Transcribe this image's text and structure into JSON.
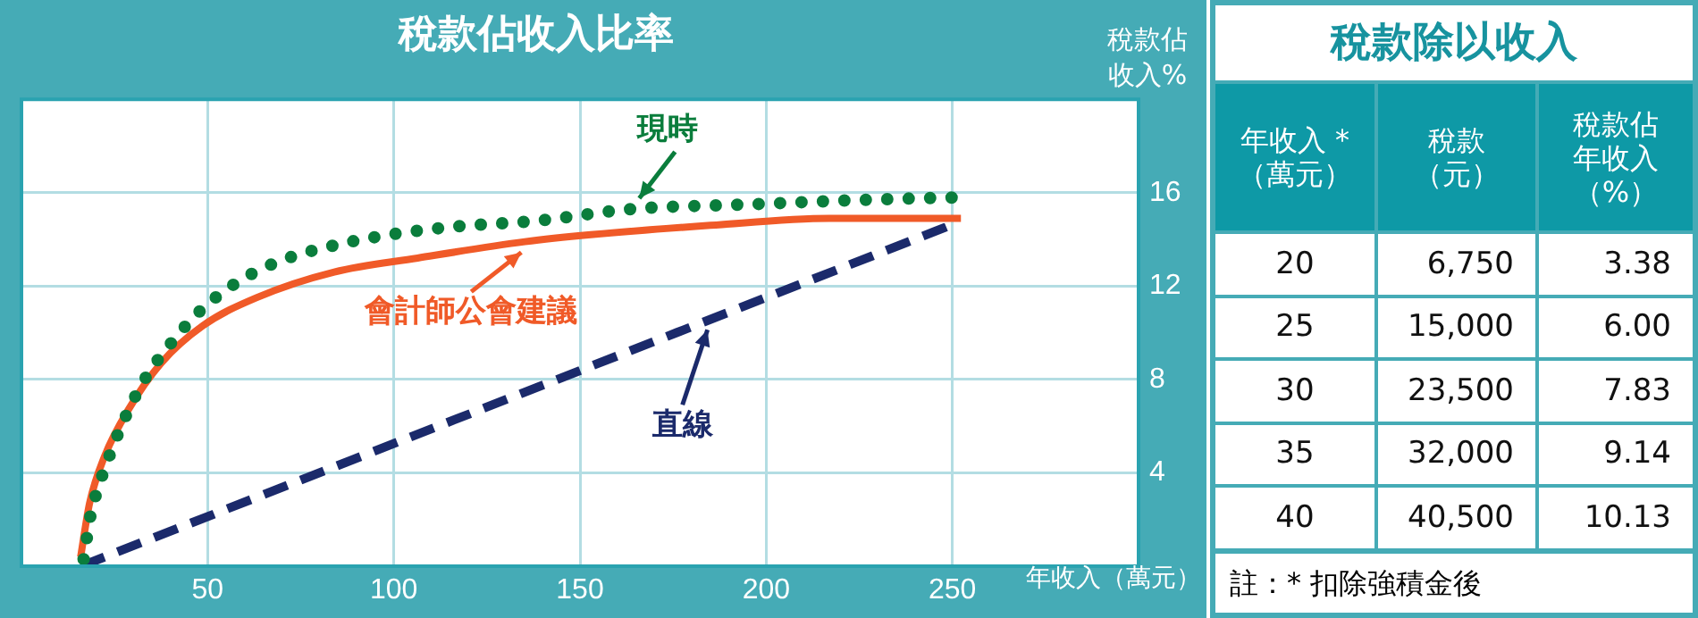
{
  "chart_data": [
    {
      "type": "line",
      "title": "稅款佔收入比率",
      "xlabel": "年收入（萬元）",
      "ylabel": "稅款佔收入%",
      "xlim": [
        0,
        300
      ],
      "xticks": [
        50,
        100,
        150,
        200,
        250
      ],
      "ylim": [
        0,
        20
      ],
      "yticks": [
        4,
        8,
        12,
        16
      ],
      "grid": true,
      "marker": "none",
      "series": [
        {
          "name": "現時",
          "color": "#0a7d3c",
          "line_style": "dotted",
          "x": [
            16.7,
            18.7,
            20.3,
            22.4,
            27.1,
            32.7,
            39.9,
            48.4,
            58.3,
            69.9,
            88.5,
            113.3,
            138.5,
            164,
            195.3,
            227.4,
            252.5
          ],
          "values": [
            0.3,
            2.3,
            3.2,
            4.2,
            6.1,
            7.9,
            9.5,
            11.0,
            12.2,
            13.1,
            13.9,
            14.5,
            14.8,
            15.3,
            15.5,
            15.7,
            15.8
          ]
        },
        {
          "name": "會計師公會建議",
          "color": "#f05a28",
          "line_style": "solid",
          "x": [
            15.9,
            18.3,
            22.3,
            28.7,
            37.5,
            48.7,
            63.1,
            84,
            106.4,
            135.2,
            152.9,
            185,
            217,
            252.3
          ],
          "values": [
            0.4,
            2.7,
            4.7,
            6.7,
            8.7,
            10.3,
            11.5,
            12.6,
            13.2,
            13.9,
            14.2,
            14.6,
            14.9,
            14.9
          ]
        },
        {
          "name": "直線",
          "color": "#1b2a6b",
          "line_style": "dashed",
          "x": [
            16,
            251
          ],
          "values": [
            0,
            14.7
          ]
        }
      ]
    },
    {
      "type": "heatmap",
      "title": "稅款除以收入",
      "ylabel": "年收入 *（萬元）",
      "categories": [
        "稅款（元）",
        "稅款佔年收入（%）"
      ],
      "y_categories": [
        "20",
        "25",
        "30",
        "35",
        "40"
      ],
      "cells": [
        [
          6750,
          3.38
        ],
        [
          15000,
          6.0
        ],
        [
          23500,
          7.83
        ],
        [
          32000,
          9.14
        ],
        [
          40500,
          10.13
        ]
      ],
      "cell_labels": [
        [
          "6,750",
          "3.38"
        ],
        [
          "15,000",
          "6.00"
        ],
        [
          "23,500",
          "7.83"
        ],
        [
          "32,000",
          "9.14"
        ],
        [
          "40,500",
          "10.13"
        ]
      ],
      "annotations": [
        "註：* 扣除強積金後"
      ]
    }
  ]
}
